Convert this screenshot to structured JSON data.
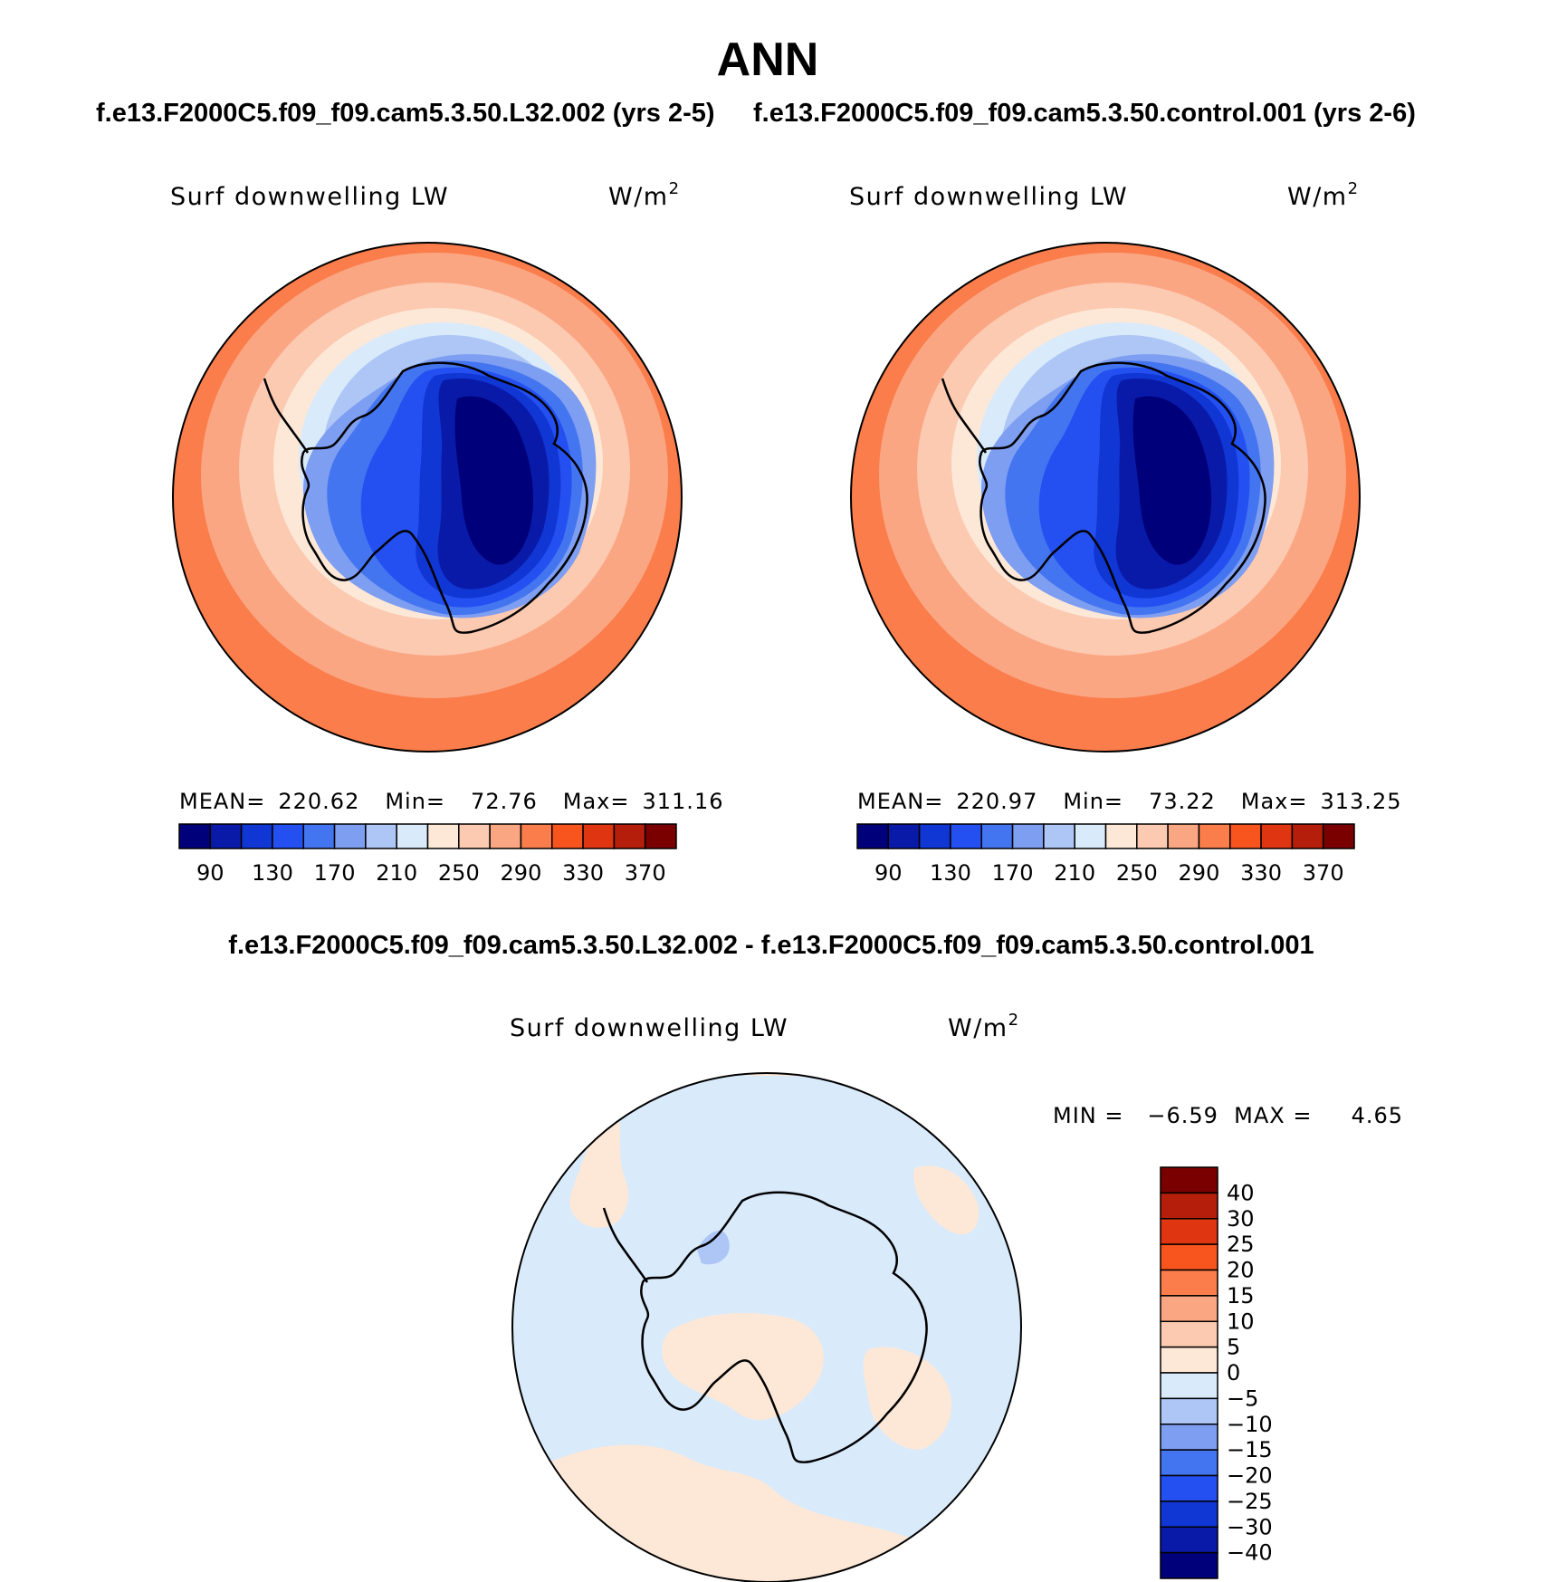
{
  "title": "ANN",
  "colors": {
    "fill_levels": [
      "#00007a",
      "#0a1aa8",
      "#1036d4",
      "#2450f2",
      "#4475f0",
      "#7e9ef2",
      "#adc6f5",
      "#d9eafb",
      "#fde8d7",
      "#fcc9b1",
      "#fba683",
      "#fa7d4b",
      "#f8541e",
      "#df3511",
      "#b51e0a",
      "#7a0000"
    ],
    "coastline": "#000000"
  },
  "chart_data": [
    {
      "type": "heatmap",
      "projection": "south polar stereographic",
      "case": "f.e13.F2000C5.f09_f09.cam5.3.50.L32.002 (yrs 2-5)",
      "variable": "Surf downwelling LW",
      "units": "W/m",
      "units_exponent": "2",
      "mean_label": "MEAN=",
      "mean": "220.62",
      "min_label": "Min=",
      "min": "72.76",
      "max_label": "Max=",
      "max": "311.16",
      "colorbar_orientation": "horizontal",
      "contour_levels": [
        90,
        130,
        170,
        210,
        250,
        290,
        330,
        370
      ],
      "colorbar_tick_labels": [
        "90",
        "130",
        "170",
        "210",
        "250",
        "290",
        "330",
        "370"
      ]
    },
    {
      "type": "heatmap",
      "projection": "south polar stereographic",
      "case": "f.e13.F2000C5.f09_f09.cam5.3.50.control.001 (yrs 2-6)",
      "variable": "Surf downwelling LW",
      "units": "W/m",
      "units_exponent": "2",
      "mean_label": "MEAN=",
      "mean": "220.97",
      "min_label": "Min=",
      "min": "73.22",
      "max_label": "Max=",
      "max": "313.25",
      "colorbar_orientation": "horizontal",
      "contour_levels": [
        90,
        130,
        170,
        210,
        250,
        290,
        330,
        370
      ],
      "colorbar_tick_labels": [
        "90",
        "130",
        "170",
        "210",
        "250",
        "290",
        "330",
        "370"
      ]
    },
    {
      "type": "heatmap",
      "projection": "south polar stereographic",
      "case": "f.e13.F2000C5.f09_f09.cam5.3.50.L32.002 - f.e13.F2000C5.f09_f09.cam5.3.50.control.001",
      "variable": "Surf downwelling LW",
      "units": "W/m",
      "units_exponent": "2",
      "minmax_text": "MIN =   −6.59  MAX =     4.65",
      "min": -6.59,
      "max": 4.65,
      "colorbar_orientation": "vertical",
      "contour_levels": [
        -40,
        -30,
        -25,
        -20,
        -15,
        -10,
        -5,
        0,
        5,
        10,
        15,
        20,
        25,
        30,
        40
      ],
      "colorbar_tick_labels": [
        "40",
        "30",
        "25",
        "20",
        "15",
        "10",
        "5",
        "0",
        "−5",
        "−10",
        "−15",
        "−20",
        "−25",
        "−30",
        "−40"
      ]
    }
  ]
}
